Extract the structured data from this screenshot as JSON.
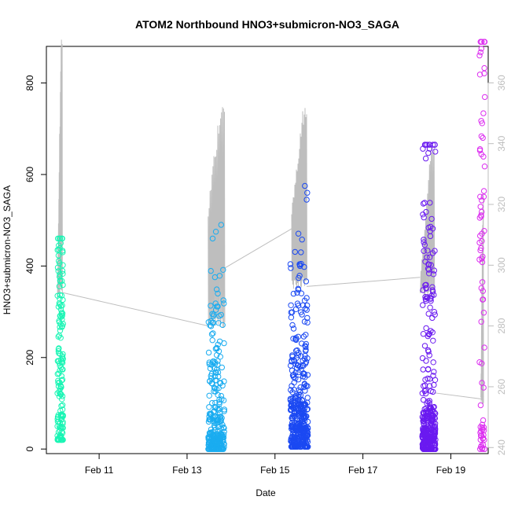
{
  "chart_data": {
    "type": "scatter",
    "title": "ATOM2 Northbound HNO3+submicron-NO3_SAGA",
    "xlabel": "Date",
    "ylabel": "HNO3+submicron-NO3_SAGA",
    "x_ticks": [
      "Feb 11",
      "Feb 13",
      "Feb 15",
      "Feb 17",
      "Feb 19"
    ],
    "x_tick_days": [
      11,
      13,
      15,
      17,
      19
    ],
    "xlim_days": [
      9.8,
      19.85
    ],
    "ylim": [
      -10,
      880
    ],
    "y_ticks": [
      0,
      200,
      400,
      600,
      800
    ],
    "y2lim": [
      238,
      372
    ],
    "y2_ticks": [
      240,
      260,
      280,
      300,
      320,
      340,
      360
    ],
    "grid": false,
    "colors": {
      "line": "#bebebe",
      "axis": "#000000",
      "right_axis": "#bdbdbd"
    },
    "series": [
      {
        "day_start": 10.05,
        "day_end": 10.18,
        "n": 160,
        "color": "#19f5b4",
        "clusters": [
          [
            40,
            0.25
          ],
          [
            120,
            0.2
          ],
          [
            220,
            0.15
          ],
          [
            330,
            0.3
          ],
          [
            420,
            0.1
          ]
        ],
        "min": 20,
        "max": 460
      },
      {
        "day_start": 13.48,
        "day_end": 13.85,
        "n": 280,
        "color": "#1aacf0",
        "clusters": [
          [
            10,
            0.35
          ],
          [
            40,
            0.2
          ],
          [
            120,
            0.2
          ],
          [
            200,
            0.15
          ],
          [
            260,
            0.1
          ]
        ],
        "min": 0,
        "max": 490
      },
      {
        "day_start": 15.35,
        "day_end": 15.75,
        "n": 380,
        "color": "#1b49f2",
        "clusters": [
          [
            20,
            0.3
          ],
          [
            60,
            0.3
          ],
          [
            130,
            0.2
          ],
          [
            230,
            0.12
          ],
          [
            320,
            0.08
          ]
        ],
        "min": 5,
        "max": 575
      },
      {
        "day_start": 18.35,
        "day_end": 18.65,
        "n": 340,
        "color": "#6a1af0",
        "clusters": [
          [
            15,
            0.35
          ],
          [
            50,
            0.3
          ],
          [
            120,
            0.1
          ],
          [
            330,
            0.15
          ],
          [
            580,
            0.1
          ]
        ],
        "min": 0,
        "max": 665
      },
      {
        "day_start": 19.65,
        "day_end": 19.78,
        "n": 80,
        "color": "#dc2ef0",
        "clusters": [
          [
            20,
            0.25
          ],
          [
            100,
            0.15
          ],
          [
            300,
            0.2
          ],
          [
            550,
            0.2
          ],
          [
            780,
            0.2
          ]
        ],
        "min": 0,
        "max": 890
      }
    ],
    "line_series": {
      "segments": [
        {
          "d0": 10.05,
          "d1": 10.16,
          "v0": 290,
          "v1": 372,
          "base": 292,
          "n": 14
        },
        {
          "d0": 13.48,
          "d1": 13.85,
          "v0": 318,
          "v1": 350,
          "base": 281,
          "n": 18
        },
        {
          "d0": 15.38,
          "d1": 15.72,
          "v0": 318,
          "v1": 349,
          "base": 294,
          "n": 20
        },
        {
          "d0": 18.3,
          "d1": 18.62,
          "v0": 292,
          "v1": 337,
          "base": 291,
          "n": 16
        },
        {
          "d0": 19.68,
          "d1": 19.74,
          "v0": 254,
          "v1": 321,
          "base": 256,
          "n": 8
        }
      ],
      "connectors": [
        [
          10.16,
          291,
          13.48,
          280
        ],
        [
          13.85,
          299,
          15.38,
          312
        ],
        [
          15.72,
          293,
          18.3,
          296
        ],
        [
          18.62,
          258,
          19.68,
          256
        ]
      ]
    }
  }
}
